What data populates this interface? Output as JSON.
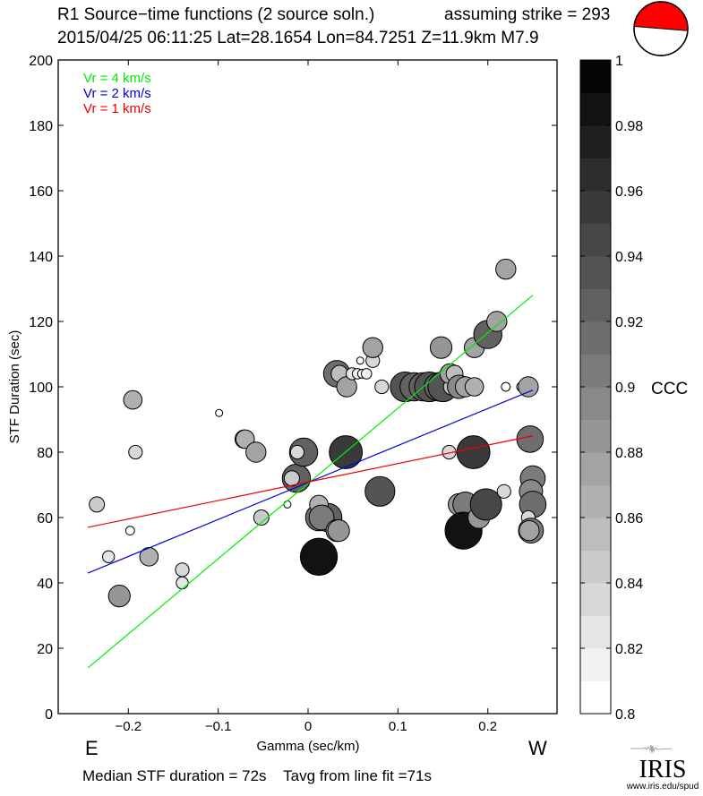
{
  "header": {
    "title_line1": "R1 Source−time functions (2 source soln.)",
    "title_line2": "2015/04/25 06:11:25  Lat=28.1654 Lon=84.7251  Z=11.9km  M7.9",
    "strike_text": "assuming strike = 293",
    "beachball_icon": "focal-mechanism-beachball",
    "beachball_color": "#ff0000"
  },
  "footer": {
    "summary": "Median STF duration = 72s    Tavg from line fit =71s",
    "logo_text": "IRIS",
    "logo_url_text": "www.iris.edu/spud"
  },
  "chart_data": {
    "type": "scatter",
    "title": "R1 Source−time functions (2 source soln.)",
    "xlabel": "Gamma (sec/km)",
    "ylabel": "STF Duration (sec)",
    "xlim": [
      -0.278,
      0.277
    ],
    "ylim": [
      0,
      200
    ],
    "x_ticks": [
      "−0.2",
      "−0.1",
      "0",
      "0.1",
      "0.2"
    ],
    "x_tick_values": [
      -0.2,
      -0.1,
      0,
      0.1,
      0.2
    ],
    "y_ticks": [
      "0",
      "20",
      "40",
      "60",
      "80",
      "100",
      "120",
      "140",
      "160",
      "180",
      "200"
    ],
    "y_tick_values": [
      0,
      20,
      40,
      60,
      80,
      100,
      120,
      140,
      160,
      180,
      200
    ],
    "x_side_labels": {
      "left": "E",
      "right": "W"
    },
    "grid": false,
    "legend_position": "top-left",
    "lines": [
      {
        "name": "Vr = 4 km/s",
        "color": "#00ee00",
        "x": [
          -0.245,
          0.25
        ],
        "y": [
          14,
          128
        ]
      },
      {
        "name": "Vr = 2 km/s",
        "color": "#0000dd",
        "x": [
          -0.245,
          0.25
        ],
        "y": [
          43,
          99
        ]
      },
      {
        "name": "Vr = 1 km/s",
        "color": "#ee0000",
        "x": [
          -0.245,
          0.25
        ],
        "y": [
          57,
          85
        ]
      }
    ],
    "colorbar": {
      "label": "CCC",
      "range": [
        0.8,
        1.0
      ],
      "ticks": [
        "0.8",
        "0.82",
        "0.84",
        "0.86",
        "0.88",
        "0.9",
        "0.92",
        "0.94",
        "0.96",
        "0.98",
        "1"
      ],
      "tick_values": [
        0.8,
        0.82,
        0.84,
        0.86,
        0.88,
        0.9,
        0.92,
        0.94,
        0.96,
        0.98,
        1.0
      ],
      "steps": [
        0.8,
        0.81,
        0.82,
        0.83,
        0.84,
        0.85,
        0.86,
        0.87,
        0.88,
        0.89,
        0.9,
        0.91,
        0.92,
        0.93,
        0.94,
        0.95,
        0.96,
        0.97,
        0.98,
        0.99
      ]
    },
    "points": [
      {
        "x": -0.235,
        "y": 64,
        "ccc": 0.85
      },
      {
        "x": -0.222,
        "y": 48,
        "ccc": 0.83
      },
      {
        "x": -0.21,
        "y": 36,
        "ccc": 0.89
      },
      {
        "x": -0.198,
        "y": 56,
        "ccc": 0.81
      },
      {
        "x": -0.195,
        "y": 96,
        "ccc": 0.87
      },
      {
        "x": -0.192,
        "y": 80,
        "ccc": 0.84
      },
      {
        "x": -0.177,
        "y": 48,
        "ccc": 0.87
      },
      {
        "x": -0.14,
        "y": 44,
        "ccc": 0.84
      },
      {
        "x": -0.14,
        "y": 40,
        "ccc": 0.83
      },
      {
        "x": -0.099,
        "y": 92,
        "ccc": 0.8
      },
      {
        "x": -0.071,
        "y": 84,
        "ccc": 0.87
      },
      {
        "x": -0.07,
        "y": 84,
        "ccc": 0.87
      },
      {
        "x": -0.058,
        "y": 80,
        "ccc": 0.88
      },
      {
        "x": -0.052,
        "y": 60,
        "ccc": 0.85
      },
      {
        "x": -0.023,
        "y": 64,
        "ccc": 0.8
      },
      {
        "x": -0.013,
        "y": 72,
        "ccc": 0.93
      },
      {
        "x": -0.018,
        "y": 72,
        "ccc": 0.85
      },
      {
        "x": -0.005,
        "y": 80,
        "ccc": 0.93
      },
      {
        "x": -0.012,
        "y": 80,
        "ccc": 0.84
      },
      {
        "x": 0.012,
        "y": 48,
        "ccc": 0.985
      },
      {
        "x": 0.012,
        "y": 60,
        "ccc": 0.92
      },
      {
        "x": 0.022,
        "y": 60,
        "ccc": 0.93
      },
      {
        "x": 0.012,
        "y": 64,
        "ccc": 0.87
      },
      {
        "x": 0.015,
        "y": 60,
        "ccc": 0.91
      },
      {
        "x": 0.032,
        "y": 56,
        "ccc": 0.89
      },
      {
        "x": 0.034,
        "y": 56,
        "ccc": 0.89
      },
      {
        "x": 0.042,
        "y": 80,
        "ccc": 0.96
      },
      {
        "x": 0.032,
        "y": 104,
        "ccc": 0.92
      },
      {
        "x": 0.035,
        "y": 104,
        "ccc": 0.86
      },
      {
        "x": 0.043,
        "y": 100,
        "ccc": 0.88
      },
      {
        "x": 0.049,
        "y": 104,
        "ccc": 0.83
      },
      {
        "x": 0.055,
        "y": 104,
        "ccc": 0.82
      },
      {
        "x": 0.06,
        "y": 104,
        "ccc": 0.81
      },
      {
        "x": 0.058,
        "y": 108,
        "ccc": 0.8
      },
      {
        "x": 0.065,
        "y": 104,
        "ccc": 0.82
      },
      {
        "x": 0.072,
        "y": 108,
        "ccc": 0.84
      },
      {
        "x": 0.072,
        "y": 112,
        "ccc": 0.88
      },
      {
        "x": 0.08,
        "y": 68,
        "ccc": 0.94
      },
      {
        "x": 0.082,
        "y": 100,
        "ccc": 0.84
      },
      {
        "x": 0.108,
        "y": 100,
        "ccc": 0.94
      },
      {
        "x": 0.118,
        "y": 100,
        "ccc": 0.93
      },
      {
        "x": 0.128,
        "y": 100,
        "ccc": 0.93
      },
      {
        "x": 0.135,
        "y": 100,
        "ccc": 0.94
      },
      {
        "x": 0.145,
        "y": 100,
        "ccc": 0.93
      },
      {
        "x": 0.148,
        "y": 112,
        "ccc": 0.89
      },
      {
        "x": 0.15,
        "y": 100,
        "ccc": 0.94
      },
      {
        "x": 0.16,
        "y": 100,
        "ccc": 0.86
      },
      {
        "x": 0.158,
        "y": 104,
        "ccc": 0.88
      },
      {
        "x": 0.163,
        "y": 104,
        "ccc": 0.86
      },
      {
        "x": 0.168,
        "y": 100,
        "ccc": 0.9
      },
      {
        "x": 0.175,
        "y": 100,
        "ccc": 0.88
      },
      {
        "x": 0.185,
        "y": 100,
        "ccc": 0.87
      },
      {
        "x": 0.157,
        "y": 80,
        "ccc": 0.84
      },
      {
        "x": 0.168,
        "y": 64,
        "ccc": 0.89
      },
      {
        "x": 0.175,
        "y": 64,
        "ccc": 0.91
      },
      {
        "x": 0.173,
        "y": 56,
        "ccc": 0.985
      },
      {
        "x": 0.184,
        "y": 80,
        "ccc": 0.96
      },
      {
        "x": 0.19,
        "y": 60,
        "ccc": 0.89
      },
      {
        "x": 0.198,
        "y": 64,
        "ccc": 0.95
      },
      {
        "x": 0.185,
        "y": 112,
        "ccc": 0.88
      },
      {
        "x": 0.2,
        "y": 116,
        "ccc": 0.93
      },
      {
        "x": 0.21,
        "y": 120,
        "ccc": 0.88
      },
      {
        "x": 0.22,
        "y": 136,
        "ccc": 0.88
      },
      {
        "x": 0.218,
        "y": 68,
        "ccc": 0.84
      },
      {
        "x": 0.22,
        "y": 100,
        "ccc": 0.81
      },
      {
        "x": 0.237,
        "y": 100,
        "ccc": 0.81
      },
      {
        "x": 0.245,
        "y": 100,
        "ccc": 0.88
      },
      {
        "x": 0.247,
        "y": 84,
        "ccc": 0.92
      },
      {
        "x": 0.25,
        "y": 72,
        "ccc": 0.91
      },
      {
        "x": 0.248,
        "y": 68,
        "ccc": 0.9
      },
      {
        "x": 0.25,
        "y": 64,
        "ccc": 0.92
      },
      {
        "x": 0.245,
        "y": 60,
        "ccc": 0.84
      },
      {
        "x": 0.248,
        "y": 56,
        "ccc": 0.91
      },
      {
        "x": 0.246,
        "y": 56,
        "ccc": 0.88
      }
    ]
  }
}
